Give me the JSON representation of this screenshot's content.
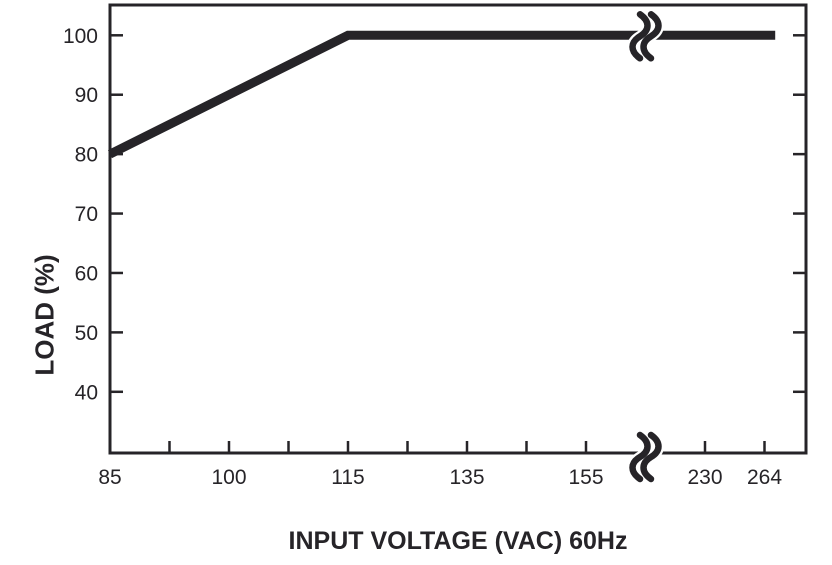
{
  "figure": {
    "background_color": "#ffffff",
    "ink_color": "#262428",
    "icons": {
      "axis_break": "double-squiggle scale-break mark"
    }
  },
  "chart_data": {
    "type": "line",
    "title": "",
    "xlabel": "INPUT VOLTAGE (VAC) 60Hz",
    "ylabel": "LOAD (%)",
    "x_tick_labels": [
      "85",
      "100",
      "115",
      "135",
      "155",
      "230",
      "264"
    ],
    "y_tick_labels": [
      "100",
      "90",
      "80",
      "70",
      "60",
      "50",
      "40"
    ],
    "y_axis": {
      "unit": "%",
      "ticks": [
        100,
        90,
        80,
        70,
        60,
        50,
        40
      ],
      "min": 29.7,
      "max": 105.1,
      "grid": false,
      "ticks_on_both_sides": true
    },
    "x_axis": {
      "unit": "VAC",
      "scale": "broken",
      "break_between": [
        "155",
        "230"
      ],
      "ticks": [
        {
          "label": "85",
          "u": 0
        },
        {
          "label": "100",
          "u": 1
        },
        {
          "label": "115",
          "u": 2
        },
        {
          "label": "135",
          "u": 3
        },
        {
          "label": "155",
          "u": 4
        },
        {
          "label": "230",
          "u": 5
        },
        {
          "label": "264",
          "u": 5.5
        }
      ],
      "minor_ticks_u": [
        0.5,
        1.5,
        2.5,
        3.5
      ],
      "break_u": 4.5,
      "axis_max_u": 5.85
    },
    "series": [
      {
        "name": "load-vs-input-voltage",
        "points": [
          {
            "vac": 85,
            "load_pct": 80
          },
          {
            "vac": 115,
            "load_pct": 100
          },
          {
            "vac": 264,
            "load_pct": 100
          }
        ]
      }
    ],
    "line_points_u": [
      [
        0,
        80
      ],
      [
        2,
        100
      ],
      [
        5.59,
        100
      ]
    ],
    "line_break_on_curve": true,
    "legend": ""
  }
}
